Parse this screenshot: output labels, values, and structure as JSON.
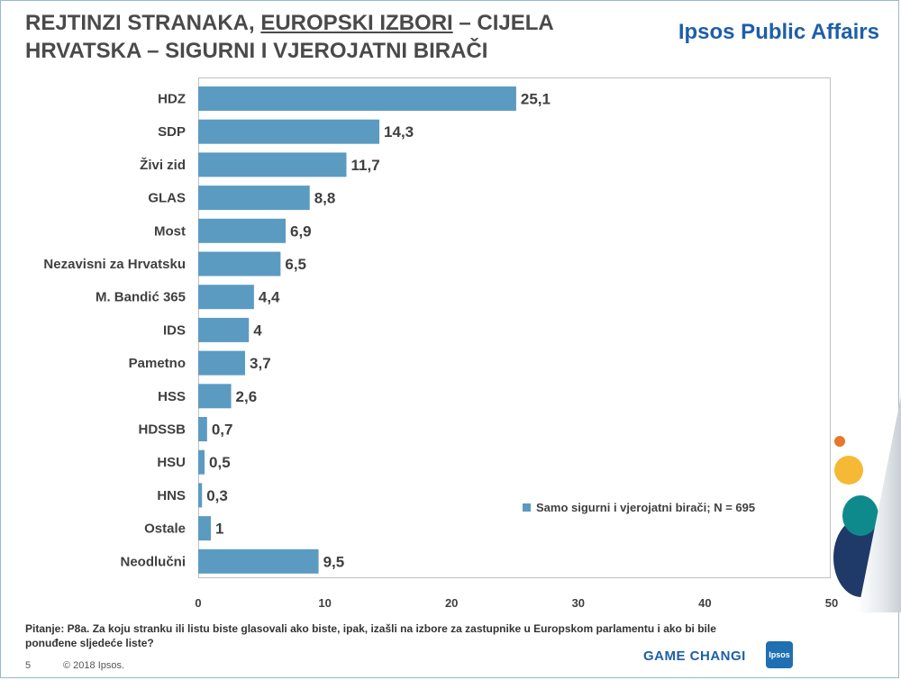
{
  "title": {
    "part1": "REJTINZI STRANAKA, ",
    "underlined": "EUROPSKI IZBORI",
    "part2": " – CIJELA HRVATSKA – SIGURNI I VJEROJATNI BIRAČI"
  },
  "brand": "Ipsos Public Affairs",
  "chart_data": {
    "type": "bar",
    "orientation": "horizontal",
    "categories": [
      "HDZ",
      "SDP",
      "Živi zid",
      "GLAS",
      "Most",
      "Nezavisni za Hrvatsku",
      "M. Bandić 365",
      "IDS",
      "Pametno",
      "HSS",
      "HDSSB",
      "HSU",
      "HNS",
      "Ostale",
      "Neodlučni"
    ],
    "series": [
      {
        "name": "Samo sigurni i vjerojatni birači; N = 695",
        "values": [
          25.1,
          14.3,
          11.7,
          8.8,
          6.9,
          6.5,
          4.4,
          4,
          3.7,
          2.6,
          0.7,
          0.5,
          0.3,
          1,
          9.5
        ],
        "labels": [
          "25,1",
          "14,3",
          "11,7",
          "8,8",
          "6,9",
          "6,5",
          "4,4",
          "4",
          "3,7",
          "2,6",
          "0,7",
          "0,5",
          "0,3",
          "1",
          "9,5"
        ]
      }
    ],
    "xlim": [
      0,
      50
    ],
    "xticks": [
      0,
      10,
      20,
      30,
      40,
      50
    ],
    "grid": false,
    "legend_position": "bottom-right",
    "bar_color": "#5b9bc1"
  },
  "footnote": "Pitanje: P8a.  Za koju stranku ili listu biste glasovali ako biste, ipak, izašli na izbore za zastupnike u Europskom parlamentu i ako bi bile ponuđene sljedeće liste?",
  "page_number": "5",
  "copyright": "© 2018  Ipsos.",
  "footer_tagline": "GAME CHANGI",
  "logo_text": "Ipsos"
}
